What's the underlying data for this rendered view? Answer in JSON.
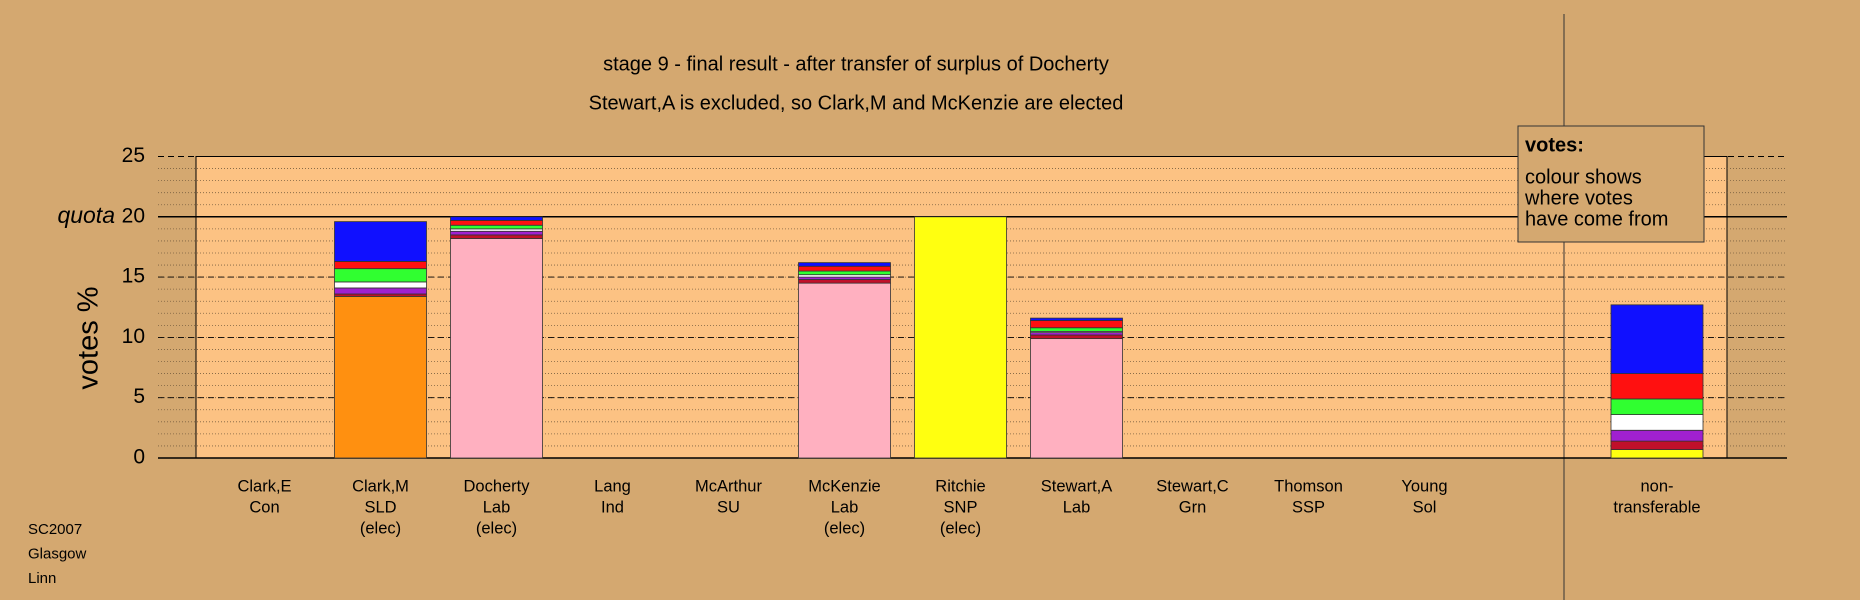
{
  "chart_data": {
    "type": "stacked_bar",
    "title": "stage 9 - final result - after transfer of surplus of Docherty",
    "subtitle": "Stewart,A is excluded, so Clark,M and McKenzie are elected",
    "y_label": "votes %",
    "categories": [
      [
        "Clark,E",
        "Con"
      ],
      [
        "Clark,M",
        "SLD",
        "(elec)"
      ],
      [
        "Docherty",
        "Lab",
        "(elec)"
      ],
      [
        "Lang",
        "Ind"
      ],
      [
        "McArthur",
        "SU"
      ],
      [
        "McKenzie",
        "Lab",
        "(elec)"
      ],
      [
        "Ritchie",
        "SNP",
        "(elec)"
      ],
      [
        "Stewart,A",
        "Lab"
      ],
      [
        "Stewart,C",
        "Grn"
      ],
      [
        "Thomson",
        "SSP"
      ],
      [
        "Young",
        "Sol"
      ],
      [
        "non-",
        "transferable"
      ]
    ],
    "series": [
      {
        "color": "#ff9010",
        "values": [
          0,
          13.4,
          0,
          0,
          0,
          0,
          0,
          0,
          0,
          0,
          0,
          0
        ]
      },
      {
        "color": "#ffb0c0",
        "values": [
          0,
          0,
          18.2,
          0,
          0,
          14.5,
          0,
          9.9,
          0,
          0,
          0,
          0
        ]
      },
      {
        "color": "#ffff10",
        "values": [
          0,
          0,
          0,
          0,
          0,
          0,
          20,
          0,
          0,
          0,
          0,
          0.7
        ]
      },
      {
        "color": "#c0102a",
        "values": [
          0,
          0.2,
          0.3,
          0,
          0,
          0.3,
          0,
          0.3,
          0,
          0,
          0,
          0.7
        ]
      },
      {
        "color": "#a020d0",
        "values": [
          0,
          0.5,
          0.3,
          0,
          0,
          0.2,
          0,
          0.2,
          0,
          0,
          0,
          0.9
        ]
      },
      {
        "color": "#ffffff",
        "values": [
          0,
          0.5,
          0.2,
          0,
          0,
          0.2,
          0,
          0.1,
          0,
          0,
          0,
          1.3
        ]
      },
      {
        "color": "#30ff30",
        "values": [
          0,
          1.1,
          0.3,
          0,
          0,
          0.3,
          0,
          0.3,
          0,
          0,
          0,
          1.3
        ]
      },
      {
        "color": "#ff1010",
        "values": [
          0,
          0.6,
          0.4,
          0,
          0,
          0.4,
          0,
          0.6,
          0,
          0,
          0,
          2.1
        ]
      },
      {
        "color": "#1010ff",
        "values": [
          0,
          3.3,
          0.3,
          0,
          0,
          0.3,
          0,
          0.2,
          0,
          0,
          0,
          5.7
        ]
      }
    ],
    "ylim": [
      0,
      25
    ],
    "yticks": [
      0,
      5,
      10,
      15,
      20,
      25
    ],
    "minor_grid_step": 1,
    "quota": {
      "value": 20,
      "label": "quota"
    },
    "note_box": {
      "heading": "votes:",
      "lines": [
        "colour shows",
        "where votes",
        "have come from"
      ]
    },
    "footer": [
      "SC2007",
      "Glasgow",
      "Linn"
    ]
  }
}
